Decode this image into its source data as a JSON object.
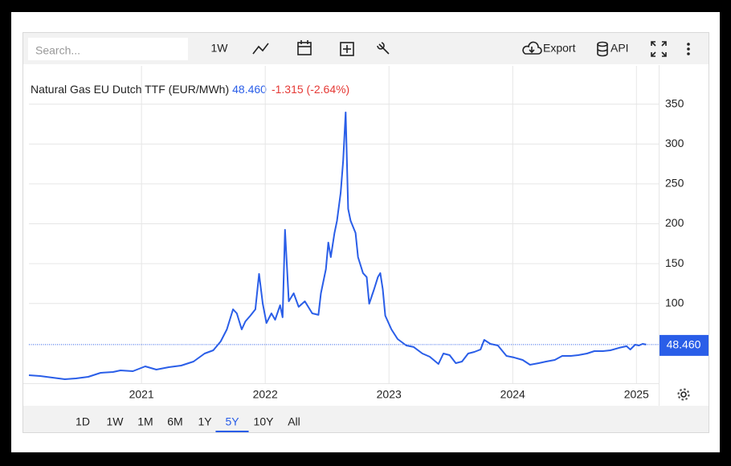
{
  "toolbar": {
    "search_placeholder": "Search...",
    "interval": "1W",
    "export": "Export",
    "api": "API"
  },
  "chart_data": {
    "type": "line",
    "title": "Natural Gas EU Dutch TTF (EUR/MWh)",
    "last_price": {
      "value": 48.46,
      "label": "48.460"
    },
    "change": "-1.315 (-2.64%)",
    "color": "#2a5ee8",
    "x": [
      2020.09,
      2020.18,
      2020.28,
      2020.38,
      2020.47,
      2020.57,
      2020.67,
      2020.77,
      2020.83,
      2020.93,
      2021.03,
      2021.12,
      2021.22,
      2021.32,
      2021.42,
      2021.51,
      2021.58,
      2021.64,
      2021.69,
      2021.74,
      2021.77,
      2021.81,
      2021.84,
      2021.88,
      2021.92,
      2021.95,
      2021.98,
      2022.01,
      2022.05,
      2022.08,
      2022.12,
      2022.14,
      2022.16,
      2022.19,
      2022.23,
      2022.27,
      2022.32,
      2022.38,
      2022.43,
      2022.45,
      2022.49,
      2022.51,
      2022.53,
      2022.56,
      2022.58,
      2022.61,
      2022.63,
      2022.65,
      2022.67,
      2022.69,
      2022.73,
      2022.75,
      2022.79,
      2022.82,
      2022.84,
      2022.88,
      2022.91,
      2022.93,
      2022.95,
      2022.97,
      2023.02,
      2023.07,
      2023.14,
      2023.2,
      2023.27,
      2023.33,
      2023.4,
      2023.44,
      2023.49,
      2023.54,
      2023.59,
      2023.64,
      2023.69,
      2023.74,
      2023.77,
      2023.82,
      2023.88,
      2023.95,
      2024.01,
      2024.08,
      2024.14,
      2024.21,
      2024.27,
      2024.34,
      2024.4,
      2024.47,
      2024.53,
      2024.6,
      2024.66,
      2024.73,
      2024.79,
      2024.86,
      2024.92,
      2024.95,
      2024.99,
      2025.02,
      2025.05,
      2025.08
    ],
    "values": [
      10.1,
      9.1,
      7.1,
      5.0,
      6.0,
      8.1,
      13.1,
      14.1,
      16.1,
      15.1,
      21.2,
      17.1,
      20.2,
      22.2,
      27.2,
      37.3,
      41.3,
      52.4,
      67.5,
      92.7,
      87.7,
      67.5,
      77.6,
      84.7,
      92.7,
      137.1,
      99.8,
      75.6,
      87.7,
      79.6,
      97.8,
      82.7,
      192.5,
      102.8,
      112.9,
      95.8,
      102.8,
      87.7,
      85.7,
      112.9,
      143.1,
      176.4,
      158.2,
      188.5,
      203.6,
      238.9,
      279.2,
      339.7,
      218.7,
      203.6,
      188.5,
      158.2,
      138.1,
      133.1,
      99.8,
      117.9,
      133.1,
      138.1,
      117.9,
      84.7,
      67.5,
      55.4,
      47.4,
      45.4,
      37.3,
      33.3,
      24.2,
      37.3,
      35.3,
      25.2,
      27.2,
      37.3,
      39.3,
      42.3,
      54.4,
      49.4,
      47.4,
      34.3,
      32.3,
      29.2,
      23.2,
      25.2,
      27.2,
      29.2,
      34.3,
      34.3,
      35.3,
      37.3,
      40.3,
      40.3,
      41.3,
      44.4,
      46.4,
      42.3,
      48.4,
      47.4,
      49.4,
      48.46
    ],
    "xlim": [
      2020.09,
      2025.18
    ],
    "xticks": [
      2021,
      2022,
      2023,
      2024,
      2025
    ],
    "ylim": [
      0,
      398
    ],
    "yticks": [
      100,
      150,
      200,
      250,
      300,
      350
    ],
    "grid": true
  },
  "range_buttons": [
    "1D",
    "1W",
    "1M",
    "6M",
    "1Y",
    "5Y",
    "10Y",
    "All"
  ],
  "active_range": "5Y"
}
